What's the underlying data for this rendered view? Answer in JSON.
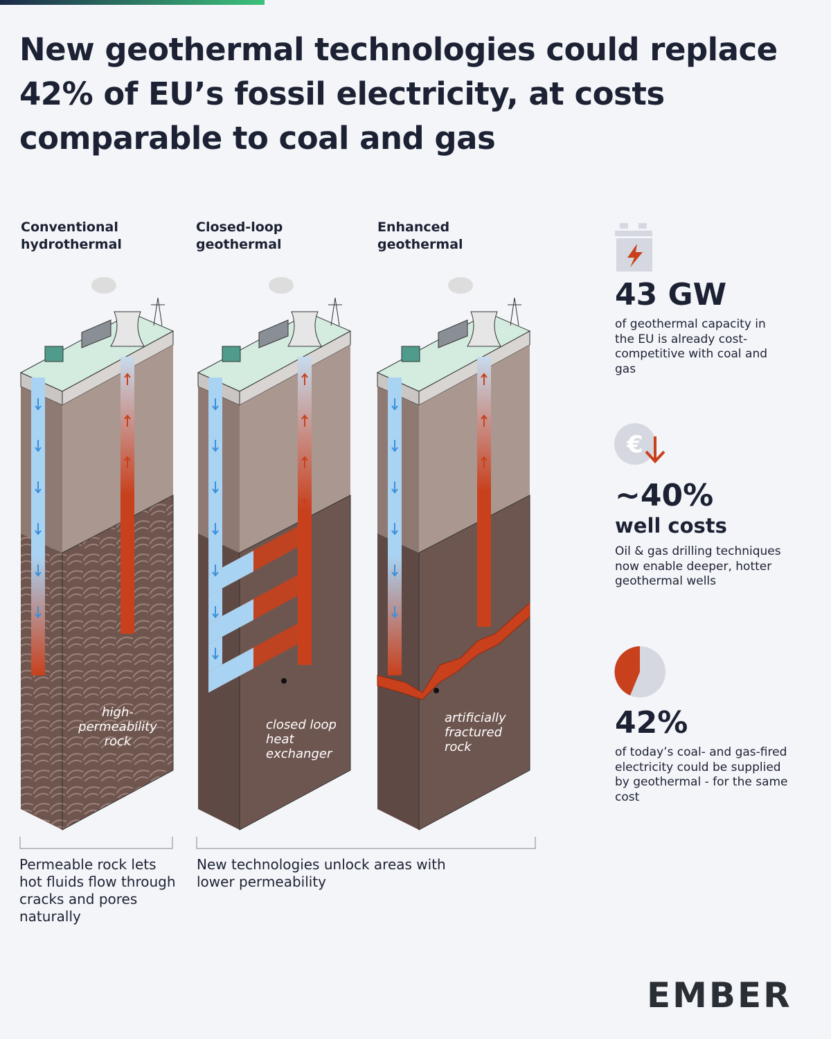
{
  "title": "New geothermal technologies could replace 42% of EU’s fossil electricity, at costs comparable to coal and gas",
  "columns": [
    {
      "label": "Conventional hydrothermal",
      "annotation": "high-permeability rock"
    },
    {
      "label": "Closed-loop geothermal",
      "annotation": "closed loop heat exchanger"
    },
    {
      "label": "Enhanced geothermal",
      "annotation": "artificially fractured rock"
    }
  ],
  "captions": [
    "Permeable rock lets hot fluids flow through cracks and pores naturally",
    "New technologies unlock areas with lower permeability"
  ],
  "stats": [
    {
      "value": "43 GW",
      "text": "of geothermal capacity in the EU is already cost-competitive with coal and gas"
    },
    {
      "value": "~40%",
      "subtitle": "well costs",
      "text": "Oil & gas drilling techniques now enable deeper, hotter geothermal wells"
    },
    {
      "value": "42%",
      "text": "of today’s coal- and gas-fired electricity could be supplied by geothermal - for the same cost"
    }
  ],
  "logo": "EMBER"
}
